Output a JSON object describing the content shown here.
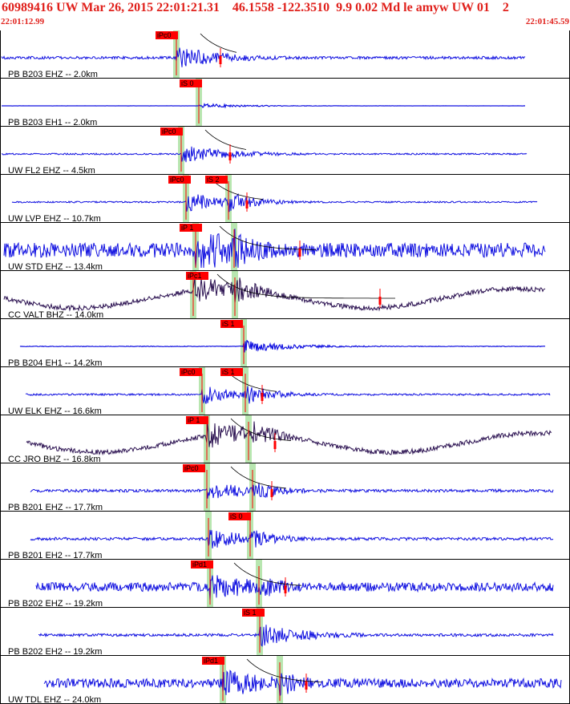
{
  "header": {
    "title": "60989416 UW Mar 26, 2015 22:01:21.31    46.1558 -122.3510  9.9 0.02 Md le amyw UW 01    2",
    "time_start": "22:01:12.99",
    "time_end": "22:01:45.59"
  },
  "colors": {
    "header_text": "#e0201b",
    "trace_blue": "#1010e0",
    "trace_dark": "#2a1050",
    "pick_red": "#ff0000",
    "window_green": "#b8e6b0",
    "separator": "#000000"
  },
  "chart_data": {
    "type": "seismogram",
    "event_id": "60989416",
    "time_window": [
      "22:01:12.99",
      "22:01:45.59"
    ],
    "traces": [
      {
        "label": "PB B203 EHZ -- 2.0km",
        "p_label": "iPc0",
        "s_label": "",
        "color": "blue",
        "style": "event"
      },
      {
        "label": "PB B203 EH1 -- 2.0km",
        "p_label": "",
        "s_label": "iS 0",
        "color": "blue",
        "style": "quiet"
      },
      {
        "label": "UW FL2 EHZ -- 4.5km",
        "p_label": "iPc0",
        "s_label": "",
        "color": "blue",
        "style": "event"
      },
      {
        "label": "UW LVP EHZ -- 10.7km",
        "p_label": "iPc0",
        "s_label": "iS 2",
        "color": "blue",
        "style": "event"
      },
      {
        "label": "UW STD EHZ -- 13.4km",
        "p_label": "iP 1",
        "s_label": "",
        "color": "blue",
        "style": "noisy"
      },
      {
        "label": "CC VALT BHZ -- 14.0km",
        "p_label": "iPc1",
        "s_label": "",
        "color": "dark",
        "style": "sine"
      },
      {
        "label": "PB B204 EH1 -- 14.2km",
        "p_label": "",
        "s_label": "iS 1",
        "color": "blue",
        "style": "quiet"
      },
      {
        "label": "UW ELK EHZ -- 16.6km",
        "p_label": "iPc0",
        "s_label": "iS 1",
        "color": "blue",
        "style": "event"
      },
      {
        "label": "CC JRO BHZ -- 16.8km",
        "p_label": "iP 1",
        "s_label": "",
        "color": "dark",
        "style": "sine"
      },
      {
        "label": "PB B201 EHZ -- 17.7km",
        "p_label": "iPc0",
        "s_label": "",
        "color": "blue",
        "style": "event"
      },
      {
        "label": "PB B201 EH2 -- 17.7km",
        "p_label": "",
        "s_label": "iS 0",
        "color": "blue",
        "style": "event"
      },
      {
        "label": "PB B202 EHZ -- 19.2km",
        "p_label": "iPd1",
        "s_label": "",
        "color": "blue",
        "style": "noisy"
      },
      {
        "label": "PB B202 EH2 -- 19.2km",
        "p_label": "",
        "s_label": "iS 1",
        "color": "blue",
        "style": "event"
      },
      {
        "label": "UW TDL EHZ -- 24.0km",
        "p_label": "iPd1",
        "s_label": "",
        "color": "blue",
        "style": "noisy"
      }
    ]
  }
}
